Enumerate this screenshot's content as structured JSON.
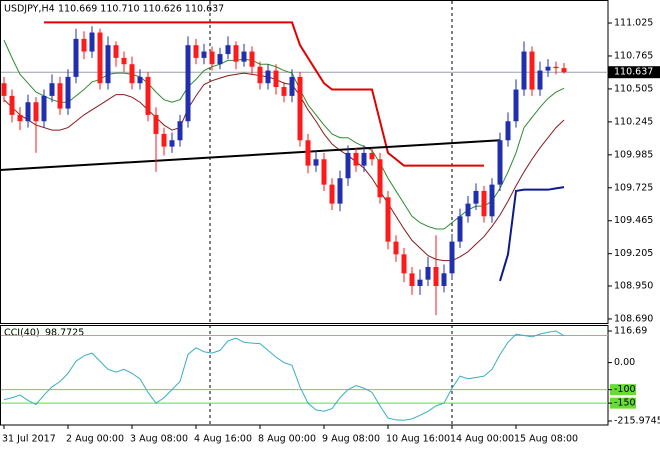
{
  "chart_data": [
    {
      "type": "candlestick",
      "title": "USDJPY,H4",
      "quote": "110.669 110.710 110.626 110.637",
      "up_color": "#1f2fb0",
      "down_color": "#ff1a1a",
      "categories": [
        "31 Jul 2017",
        null,
        null,
        null,
        null,
        null,
        null,
        null,
        "2 Aug 00:00",
        null,
        null,
        null,
        null,
        null,
        null,
        null,
        "3 Aug 08:00",
        null,
        null,
        null,
        null,
        null,
        null,
        null,
        "4 Aug 16:00",
        null,
        null,
        null,
        null,
        null,
        null,
        null,
        "8 Aug 00:00",
        null,
        null,
        null,
        null,
        null,
        null,
        null,
        "9 Aug 08:00",
        null,
        null,
        null,
        null,
        null,
        null,
        null,
        "10 Aug 16:00",
        null,
        null,
        null,
        null,
        null,
        null,
        null,
        "14 Aug 00:00",
        null,
        null,
        null,
        null,
        null,
        null,
        null,
        "15 Aug 08:00",
        null,
        null,
        null,
        null,
        null,
        null
      ],
      "open": [
        110.55,
        110.45,
        110.3,
        110.25,
        110.4,
        110.25,
        110.45,
        110.55,
        110.35,
        110.6,
        110.9,
        110.8,
        110.95,
        110.55,
        110.85,
        110.75,
        110.7,
        110.55,
        110.6,
        110.3,
        110.15,
        110.05,
        110.1,
        110.25,
        110.85,
        110.75,
        110.8,
        110.7,
        110.78,
        110.85,
        110.72,
        110.8,
        110.68,
        110.55,
        110.65,
        110.52,
        110.45,
        110.6,
        110.1,
        109.9,
        109.95,
        109.75,
        109.6,
        109.8,
        110.0,
        109.9,
        110.0,
        109.95,
        109.65,
        109.3,
        109.2,
        109.05,
        108.95,
        109.0,
        109.1,
        108.95,
        109.05,
        109.3,
        109.5,
        109.6,
        109.7,
        109.5,
        109.75,
        110.1,
        110.25,
        110.5,
        110.8,
        110.5,
        110.65,
        110.68,
        110.669
      ],
      "high": [
        110.6,
        110.5,
        110.36,
        110.46,
        110.44,
        110.5,
        110.62,
        110.6,
        110.66,
        110.98,
        110.96,
        111.0,
        110.98,
        110.92,
        110.88,
        110.8,
        110.76,
        110.66,
        110.64,
        110.36,
        110.2,
        110.16,
        110.3,
        110.92,
        110.9,
        110.86,
        110.84,
        110.83,
        110.92,
        110.88,
        110.86,
        110.84,
        110.72,
        110.7,
        110.7,
        110.56,
        110.66,
        110.64,
        110.15,
        110.02,
        110.0,
        109.8,
        109.86,
        110.06,
        110.04,
        110.06,
        110.04,
        110.0,
        109.7,
        109.35,
        109.25,
        109.1,
        109.08,
        109.18,
        109.35,
        109.12,
        109.36,
        109.56,
        109.66,
        109.76,
        109.74,
        109.8,
        110.16,
        110.32,
        110.58,
        110.88,
        110.84,
        110.72,
        110.74,
        110.72,
        110.71
      ],
      "low": [
        110.4,
        110.24,
        110.18,
        110.2,
        110.0,
        110.2,
        110.4,
        110.3,
        110.3,
        110.55,
        110.74,
        110.75,
        110.5,
        110.5,
        110.68,
        110.64,
        110.5,
        110.5,
        110.25,
        109.85,
        109.98,
        110.0,
        110.05,
        110.2,
        110.7,
        110.7,
        110.65,
        110.66,
        110.74,
        110.66,
        110.68,
        110.62,
        110.5,
        110.5,
        110.46,
        110.4,
        110.4,
        110.05,
        109.84,
        109.85,
        109.7,
        109.55,
        109.54,
        109.74,
        109.85,
        109.85,
        109.9,
        109.6,
        109.24,
        109.14,
        108.98,
        108.88,
        108.88,
        108.95,
        108.72,
        108.9,
        109.0,
        109.25,
        109.45,
        109.55,
        109.45,
        109.45,
        109.7,
        110.05,
        110.2,
        110.45,
        110.45,
        110.45,
        110.6,
        110.62,
        110.626
      ],
      "close": [
        110.45,
        110.3,
        110.25,
        110.4,
        110.25,
        110.45,
        110.55,
        110.35,
        110.6,
        110.9,
        110.8,
        110.95,
        110.55,
        110.85,
        110.75,
        110.7,
        110.55,
        110.6,
        110.3,
        110.15,
        110.05,
        110.1,
        110.25,
        110.85,
        110.75,
        110.8,
        110.7,
        110.78,
        110.85,
        110.72,
        110.8,
        110.68,
        110.55,
        110.65,
        110.52,
        110.45,
        110.6,
        110.1,
        109.9,
        109.95,
        109.75,
        109.6,
        109.8,
        110.0,
        109.9,
        110.0,
        109.95,
        109.65,
        109.3,
        109.2,
        109.05,
        108.95,
        109.0,
        109.1,
        108.95,
        109.05,
        109.3,
        109.5,
        109.6,
        109.7,
        109.5,
        109.75,
        110.1,
        110.25,
        110.5,
        110.8,
        110.5,
        110.65,
        110.68,
        110.669,
        110.637
      ],
      "series": [
        {
          "color": "#2e8b2e",
          "values": [
            110.89,
            110.75,
            110.62,
            110.55,
            110.48,
            110.45,
            110.42,
            110.4,
            110.4,
            110.45,
            110.5,
            110.56,
            110.58,
            110.62,
            110.63,
            110.63,
            110.62,
            110.6,
            110.55,
            110.48,
            110.42,
            110.4,
            110.42,
            110.52,
            110.58,
            110.65,
            110.68,
            110.7,
            110.73,
            110.73,
            110.74,
            110.73,
            110.7,
            110.7,
            110.68,
            110.65,
            110.63,
            110.5,
            110.38,
            110.3,
            110.22,
            110.15,
            110.12,
            110.12,
            110.08,
            110.05,
            110.02,
            109.92,
            109.8,
            109.7,
            109.6,
            109.5,
            109.45,
            109.42,
            109.4,
            109.4,
            109.45,
            109.5,
            109.55,
            109.58,
            109.58,
            109.62,
            109.72,
            109.85,
            110.0,
            110.2,
            110.28,
            110.36,
            110.43,
            110.48,
            110.51
          ]
        },
        {
          "color": "#8b1a1a",
          "values": [
            110.42,
            110.36,
            110.3,
            110.26,
            110.22,
            110.2,
            110.18,
            110.18,
            110.2,
            110.25,
            110.3,
            110.34,
            110.38,
            110.42,
            110.46,
            110.46,
            110.44,
            110.4,
            110.34,
            110.28,
            110.22,
            110.18,
            110.2,
            110.35,
            110.45,
            110.54,
            110.57,
            110.59,
            110.61,
            110.62,
            110.63,
            110.62,
            110.61,
            110.6,
            110.58,
            110.55,
            110.54,
            110.45,
            110.34,
            110.25,
            110.15,
            110.07,
            110.02,
            109.98,
            109.93,
            109.88,
            109.8,
            109.7,
            109.6,
            109.5,
            109.4,
            109.31,
            109.25,
            109.19,
            109.16,
            109.15,
            109.15,
            109.18,
            109.22,
            109.28,
            109.34,
            109.42,
            109.51,
            109.62,
            109.74,
            109.85,
            109.95,
            110.04,
            110.12,
            110.2,
            110.26
          ]
        },
        {
          "color": "#e00000",
          "width": 2,
          "values": [
            null,
            null,
            null,
            null,
            null,
            111.03,
            111.03,
            111.03,
            111.03,
            111.03,
            111.03,
            111.03,
            111.03,
            111.03,
            111.03,
            111.03,
            111.03,
            111.03,
            111.03,
            111.03,
            111.03,
            111.03,
            111.03,
            111.03,
            111.03,
            111.03,
            111.03,
            111.03,
            111.03,
            111.03,
            111.03,
            111.03,
            111.03,
            111.03,
            111.03,
            111.03,
            111.03,
            110.85,
            110.75,
            110.65,
            110.55,
            110.5,
            110.5,
            110.5,
            110.5,
            110.5,
            110.5,
            110.25,
            110.0,
            109.95,
            109.9,
            109.9,
            109.9,
            109.9,
            109.9,
            109.9,
            109.9,
            109.9,
            109.9,
            109.9,
            109.9,
            null,
            null,
            null,
            null,
            null,
            null,
            null,
            null,
            null,
            null
          ]
        },
        {
          "color": "#0a1a8a",
          "width": 2,
          "values": [
            null,
            null,
            null,
            null,
            null,
            null,
            null,
            null,
            null,
            null,
            null,
            null,
            null,
            null,
            null,
            null,
            null,
            null,
            null,
            null,
            null,
            null,
            null,
            null,
            null,
            null,
            null,
            null,
            null,
            null,
            null,
            null,
            null,
            null,
            null,
            null,
            null,
            null,
            null,
            null,
            null,
            null,
            null,
            null,
            null,
            null,
            null,
            null,
            null,
            null,
            null,
            null,
            null,
            null,
            null,
            null,
            null,
            null,
            null,
            null,
            null,
            null,
            108.99,
            109.2,
            109.7,
            109.71,
            109.71,
            109.71,
            109.71,
            109.72,
            109.73
          ]
        }
      ],
      "trendline": {
        "color": "#000000",
        "x": [
          -0.5,
          62
        ],
        "values": [
          109.865,
          110.1
        ]
      },
      "ylim": [
        108.658,
        111.183
      ],
      "yticks": [
        111.025,
        110.765,
        110.505,
        110.245,
        109.985,
        109.725,
        109.465,
        109.205,
        {
          "value": 108.95,
          "label": "108.950"
        },
        {
          "value": 108.69,
          "label": "108.690"
        }
      ]
    },
    {
      "type": "line",
      "series": [
        {
          "name": "CCI(40)",
          "color": "#3aaec0",
          "values": [
            -137,
            -130,
            -120,
            -140,
            -155,
            -120,
            -90,
            -70,
            -40,
            5,
            25,
            35,
            5,
            -25,
            -35,
            -25,
            -40,
            -60,
            -110,
            -150,
            -130,
            -100,
            -70,
            30,
            55,
            40,
            35,
            45,
            80,
            90,
            75,
            72,
            70,
            45,
            20,
            0,
            -10,
            -90,
            -150,
            -175,
            -180,
            -170,
            -130,
            -100,
            -85,
            -95,
            -110,
            -160,
            -205,
            -212,
            -213,
            -208,
            -195,
            -180,
            -160,
            -150,
            -95,
            -50,
            -60,
            -55,
            -50,
            -25,
            30,
            75,
            105,
            100,
            95,
            105,
            112,
            116.69,
            98.7725
          ]
        }
      ],
      "levels": [
        100,
        -100,
        -150
      ],
      "level_color": "#66dd33",
      "ylim": [
        -230.76,
        138.87
      ],
      "yticks": [
        116.69,
        {
          "value": 0,
          "label": "0.00"
        },
        -100,
        -150,
        -215.9745
      ]
    }
  ]
}
